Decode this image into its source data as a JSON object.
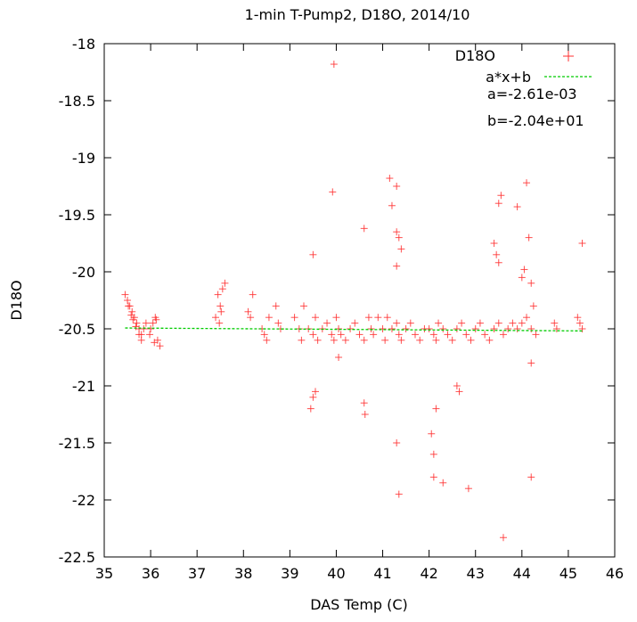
{
  "chart_data": {
    "type": "scatter",
    "title": "1-min T-Pump2, D18O, 2014/10",
    "xlabel": "DAS Temp (C)",
    "ylabel": "D18O",
    "xlim": [
      35,
      46
    ],
    "ylim": [
      -22.5,
      -18
    ],
    "xticks": [
      35,
      36,
      37,
      38,
      39,
      40,
      41,
      42,
      43,
      44,
      45,
      46
    ],
    "xtick_labels": [
      "35",
      "36",
      "37",
      "38",
      "39",
      "40",
      "41",
      "42",
      "43",
      "44",
      "45",
      "46"
    ],
    "yticks": [
      -18,
      -18.5,
      -19,
      -19.5,
      -20,
      -20.5,
      -21,
      -21.5,
      -22,
      -22.5
    ],
    "ytick_labels": [
      "-18",
      "-18.5",
      "-19",
      "-19.5",
      "-20",
      "-20.5",
      "-21",
      "-21.5",
      "-22",
      "-22.5"
    ],
    "grid": false,
    "legend_position": "top-right",
    "series": [
      {
        "name": "D18O",
        "kind": "points",
        "marker": "plus",
        "color": "#ff3030",
        "x": [
          35.45,
          35.5,
          35.55,
          35.6,
          35.65,
          35.7,
          35.75,
          35.8,
          35.52,
          35.58,
          35.62,
          35.68,
          35.75,
          35.8,
          35.85,
          35.9,
          36.0,
          36.05,
          36.1,
          36.15,
          36.2,
          35.98,
          36.08,
          36.12,
          37.45,
          37.5,
          37.55,
          37.4,
          37.48,
          37.52,
          37.6,
          38.1,
          38.15,
          38.2,
          38.4,
          38.45,
          38.5,
          38.55,
          38.7,
          38.75,
          38.8,
          39.1,
          39.2,
          39.25,
          39.3,
          39.4,
          39.5,
          39.55,
          39.6,
          39.7,
          39.8,
          39.9,
          39.95,
          40.0,
          40.05,
          40.1,
          40.2,
          40.3,
          40.4,
          40.5,
          40.6,
          40.7,
          40.75,
          40.8,
          40.9,
          41.0,
          41.05,
          41.1,
          41.2,
          41.3,
          41.35,
          41.4,
          41.5,
          41.6,
          41.7,
          41.8,
          41.9,
          42.0,
          42.1,
          42.15,
          42.2,
          42.3,
          42.4,
          42.5,
          42.6,
          42.7,
          42.8,
          42.9,
          43.0,
          43.1,
          43.2,
          43.3,
          43.4,
          43.5,
          43.6,
          43.7,
          43.8,
          43.9,
          44.0,
          44.1,
          44.2,
          44.3,
          44.7,
          44.75,
          45.2,
          45.25,
          45.3,
          39.55,
          39.95,
          39.92,
          39.5,
          39.5,
          39.45,
          40.05,
          40.6,
          40.62,
          40.6,
          41.15,
          41.2,
          41.3,
          41.35,
          41.4,
          41.35,
          41.3,
          41.3,
          42.05,
          42.1,
          42.15,
          42.1,
          42.3,
          42.85,
          43.5,
          43.55,
          43.6,
          44.1,
          44.15,
          44.2,
          44.2,
          43.9,
          44.05,
          44.0,
          44.2,
          44.25,
          45.3,
          43.4,
          43.45,
          43.5,
          41.3,
          42.6,
          42.65
        ],
        "y": [
          -20.2,
          -20.25,
          -20.3,
          -20.35,
          -20.4,
          -20.45,
          -20.5,
          -20.55,
          -20.3,
          -20.38,
          -20.42,
          -20.48,
          -20.55,
          -20.6,
          -20.5,
          -20.45,
          -20.5,
          -20.45,
          -20.4,
          -20.6,
          -20.65,
          -20.55,
          -20.62,
          -20.42,
          -20.2,
          -20.3,
          -20.15,
          -20.4,
          -20.45,
          -20.35,
          -20.1,
          -20.35,
          -20.4,
          -20.2,
          -20.5,
          -20.55,
          -20.6,
          -20.4,
          -20.3,
          -20.45,
          -20.5,
          -20.4,
          -20.5,
          -20.6,
          -20.3,
          -20.5,
          -20.55,
          -20.4,
          -20.6,
          -20.5,
          -20.45,
          -20.55,
          -20.6,
          -20.4,
          -20.5,
          -20.55,
          -20.6,
          -20.5,
          -20.45,
          -20.55,
          -20.6,
          -20.4,
          -20.5,
          -20.55,
          -20.4,
          -20.5,
          -20.6,
          -20.4,
          -20.5,
          -20.45,
          -20.55,
          -20.6,
          -20.5,
          -20.45,
          -20.55,
          -20.6,
          -20.5,
          -20.5,
          -20.55,
          -20.6,
          -20.45,
          -20.5,
          -20.55,
          -20.6,
          -20.5,
          -20.45,
          -20.55,
          -20.6,
          -20.5,
          -20.45,
          -20.55,
          -20.6,
          -20.5,
          -20.45,
          -20.55,
          -20.5,
          -20.45,
          -20.5,
          -20.45,
          -20.4,
          -20.5,
          -20.55,
          -20.45,
          -20.5,
          -20.4,
          -20.45,
          -20.5,
          -21.05,
          -18.18,
          -19.3,
          -19.85,
          -21.1,
          -21.2,
          -20.75,
          -21.15,
          -21.25,
          -19.62,
          -19.18,
          -19.42,
          -19.25,
          -19.7,
          -19.8,
          -21.95,
          -21.5,
          -19.65,
          -21.42,
          -21.6,
          -21.2,
          -21.8,
          -21.85,
          -21.9,
          -19.4,
          -19.33,
          -22.33,
          -19.22,
          -19.7,
          -21.8,
          -20.8,
          -19.43,
          -19.98,
          -20.05,
          -20.1,
          -20.3,
          -19.75,
          -19.75,
          -19.85,
          -19.92,
          -19.95,
          -21.0,
          -21.05
        ],
        "legend_label": "D18O"
      },
      {
        "name": "a*x+b",
        "kind": "line",
        "color": "#00cc00",
        "dashed": true,
        "x": [
          35.45,
          45.3
        ],
        "y": [
          -20.4926,
          -20.5183
        ],
        "legend_label": "a*x+b"
      }
    ],
    "annotations": [
      "a=-2.61e-03",
      "b=-2.04e+01"
    ]
  }
}
